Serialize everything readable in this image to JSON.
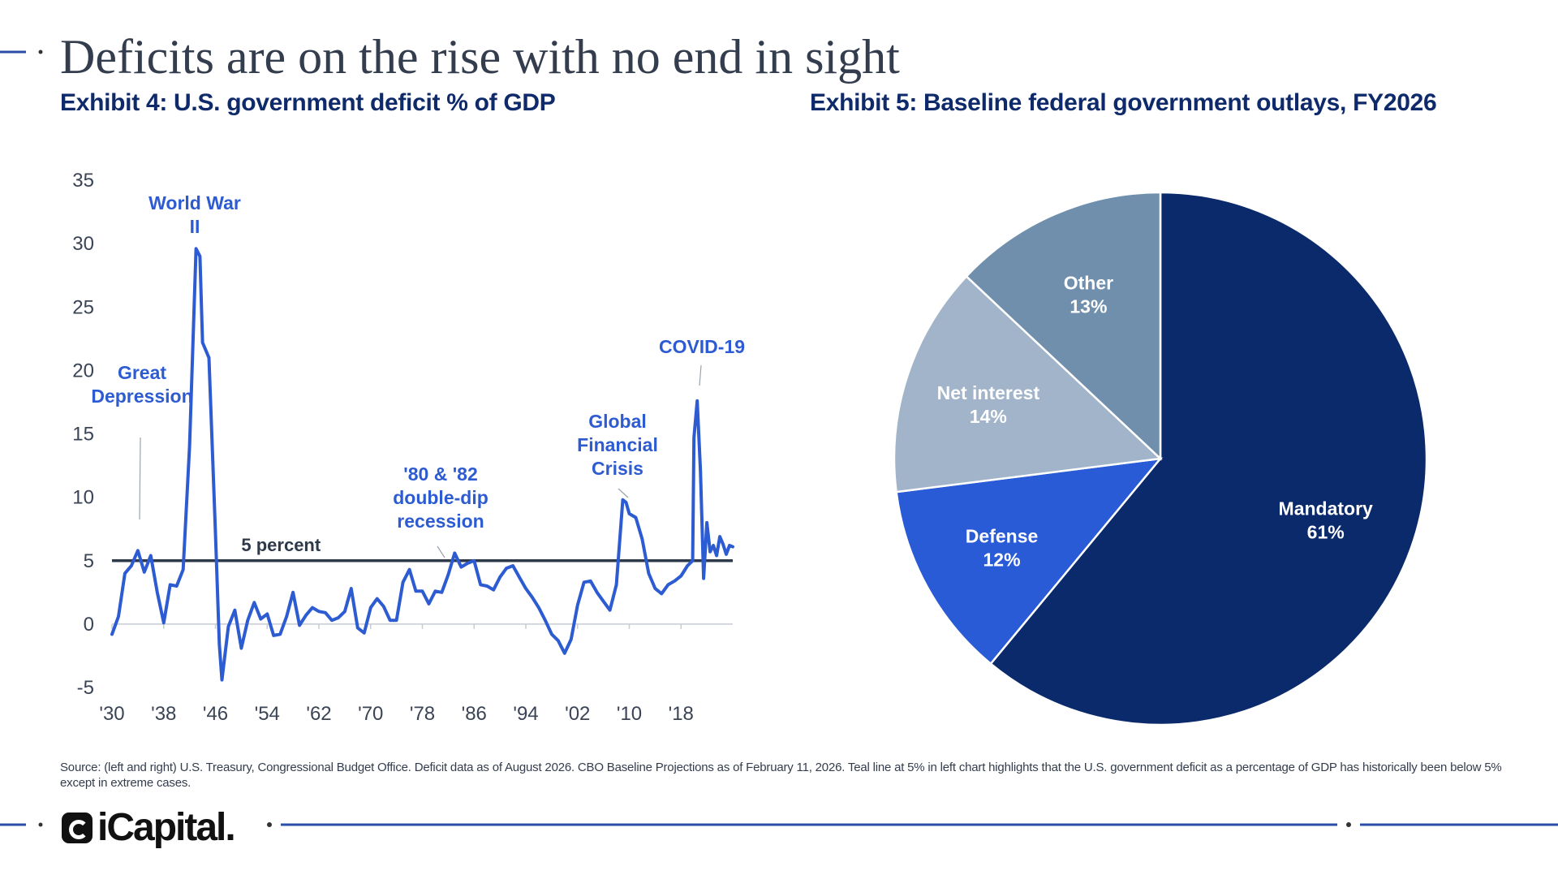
{
  "slide": {
    "title": "Deficits are on the rise with no end in sight",
    "brand": "iCapital.",
    "source": "Source: (left and right) U.S. Treasury, Congressional Budget Office. Deficit data as of August 2026. CBO Baseline Projections as of February 11, 2026. Teal line at 5% in left chart highlights that the U.S. government deficit as a percentage of GDP has historically been below 5% except in extreme cases.",
    "colors": {
      "title": "#333d4d",
      "exhibit_title": "#0e2a6b",
      "accent": "#2d5bd1",
      "rule": "#2b4fa8"
    }
  },
  "chart_data": [
    {
      "type": "line",
      "title": "Exhibit 4: U.S. government deficit % of GDP",
      "xlabel": "",
      "ylabel": "",
      "xlim": [
        1930,
        2026
      ],
      "ylim": [
        -5,
        35
      ],
      "x_tick_labels": [
        "'30",
        "'38",
        "'46",
        "'54",
        "'62",
        "'70",
        "'78",
        "'86",
        "'94",
        "'02",
        "'10",
        "'18"
      ],
      "x_ticks": [
        1930,
        1938,
        1946,
        1954,
        1962,
        1970,
        1978,
        1986,
        1994,
        2002,
        2010,
        2018
      ],
      "y_ticks": [
        -5,
        0,
        5,
        10,
        15,
        20,
        25,
        30,
        35
      ],
      "grid": false,
      "line_color": "#2d5bd1",
      "series": [
        {
          "x": [
            1930,
            1931,
            1932,
            1933,
            1934,
            1935,
            1936,
            1937,
            1938,
            1939,
            1940,
            1941,
            1942,
            1943,
            1943.6,
            1944,
            1945,
            1946,
            1946.6,
            1947,
            1948,
            1949,
            1950,
            1951,
            1952,
            1953,
            1954,
            1955,
            1956,
            1957,
            1958,
            1959,
            1960,
            1961,
            1962,
            1963,
            1964,
            1965,
            1966,
            1967,
            1968,
            1969,
            1970,
            1971,
            1972,
            1973,
            1974,
            1975,
            1976,
            1977,
            1978,
            1979,
            1980,
            1981,
            1982,
            1983,
            1984,
            1985,
            1986,
            1987,
            1988,
            1989,
            1990,
            1991,
            1992,
            1993,
            1994,
            1995,
            1996,
            1997,
            1998,
            1999,
            2000,
            2001,
            2002,
            2003,
            2004,
            2005,
            2006,
            2007,
            2008,
            2009,
            2009.5,
            2010,
            2011,
            2012,
            2013,
            2014,
            2015,
            2016,
            2017,
            2018,
            2019,
            2019.8,
            2020,
            2020.5,
            2021,
            2021.5,
            2022,
            2022.5,
            2023,
            2023.5,
            2024,
            2024.5,
            2025,
            2025.5,
            2026
          ],
          "values": [
            -0.8,
            0.6,
            4.0,
            4.6,
            5.8,
            4.1,
            5.4,
            2.5,
            0.1,
            3.1,
            3.0,
            4.3,
            14.0,
            29.6,
            29.0,
            22.2,
            21.0,
            7.2,
            -1.6,
            -4.4,
            -0.2,
            1.1,
            -1.9,
            0.3,
            1.7,
            0.4,
            0.8,
            -0.9,
            -0.8,
            0.6,
            2.5,
            -0.1,
            0.7,
            1.3,
            1.0,
            0.9,
            0.3,
            0.5,
            1.0,
            2.8,
            -0.3,
            -0.7,
            1.3,
            2.0,
            1.4,
            0.3,
            0.3,
            3.3,
            4.3,
            2.6,
            2.6,
            1.6,
            2.6,
            2.5,
            3.9,
            5.6,
            4.5,
            4.8,
            5.0,
            3.1,
            3.0,
            2.7,
            3.7,
            4.4,
            4.6,
            3.7,
            2.8,
            2.1,
            1.3,
            0.3,
            -0.8,
            -1.3,
            -2.3,
            -1.2,
            1.5,
            3.3,
            3.4,
            2.5,
            1.8,
            1.1,
            3.1,
            9.8,
            9.6,
            8.7,
            8.4,
            6.7,
            4.0,
            2.8,
            2.4,
            3.1,
            3.4,
            3.8,
            4.6,
            5.0,
            14.7,
            17.6,
            12.1,
            3.6,
            8.0,
            5.7,
            6.2,
            5.4,
            6.9,
            6.3,
            5.5,
            6.2,
            6.1
          ]
        }
      ],
      "reference_line": {
        "value": 5,
        "label": "5 percent",
        "color": "#2e3a4a"
      },
      "annotations": [
        {
          "lines": [
            "World War",
            "II"
          ],
          "x": 1943,
          "y": 30
        },
        {
          "lines": [
            "Great",
            "Depression"
          ],
          "x": 1934,
          "y": 15
        },
        {
          "lines": [
            "'80 & '82",
            "double-dip",
            "recession"
          ],
          "x": 1983,
          "y": 5.6
        },
        {
          "lines": [
            "Global",
            "Financial",
            "Crisis"
          ],
          "x": 2009.6,
          "y": 10
        },
        {
          "lines": [
            "COVID-19"
          ],
          "x": 2020.2,
          "y": 18
        }
      ]
    },
    {
      "type": "pie",
      "title": "Exhibit 5: Baseline federal government outlays, FY2026",
      "slices": [
        {
          "label": "Mandatory",
          "value": 61,
          "display": "61%",
          "color": "#0b2a6b"
        },
        {
          "label": "Defense",
          "value": 12,
          "display": "12%",
          "color": "#2a5bd7"
        },
        {
          "label": "Net interest",
          "value": 14,
          "display": "14%",
          "color": "#a1b4c9"
        },
        {
          "label": "Other",
          "value": 13,
          "display": "13%",
          "color": "#6f8fac"
        }
      ],
      "start_angle": "12 o'clock",
      "direction": "clockwise"
    }
  ]
}
